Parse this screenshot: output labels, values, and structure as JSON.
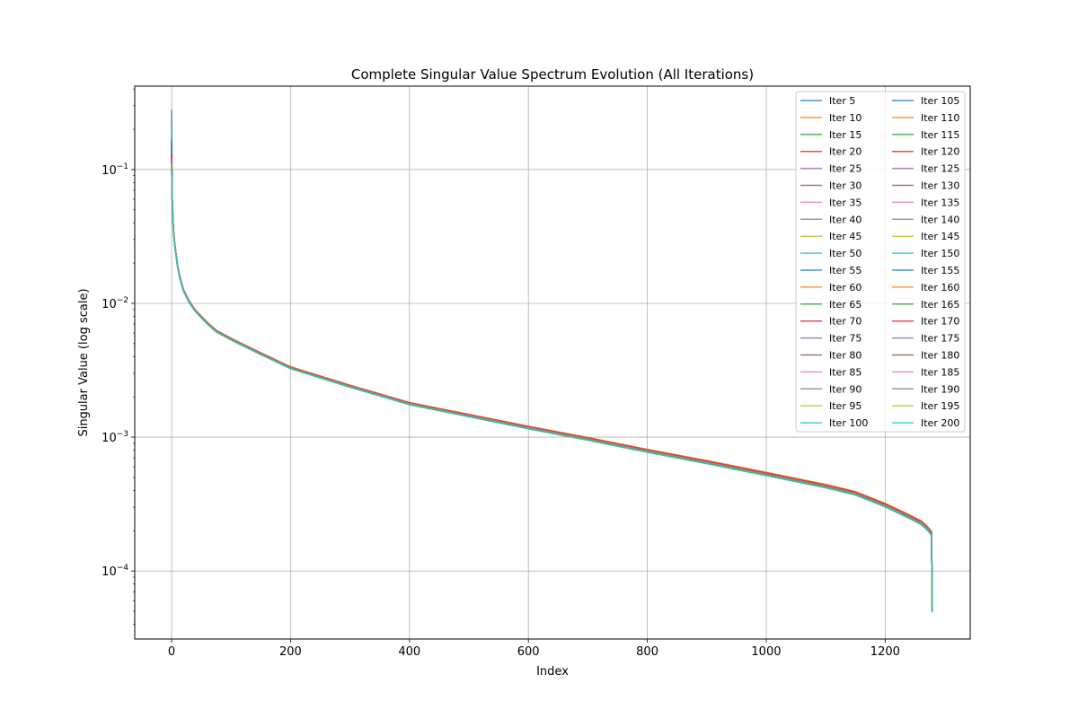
{
  "chart_data": {
    "type": "line",
    "title": "Complete Singular Value Spectrum Evolution (All Iterations)",
    "xlabel": "Index",
    "ylabel": "Singular Value (log scale)",
    "xlim": [
      -62,
      1343
    ],
    "ylim": [
      3.1e-05,
      0.42
    ],
    "yscale": "log",
    "grid": true,
    "legend_position": "top-right",
    "legend_columns": 2,
    "x_ticks": [
      {
        "value": 0,
        "label": "0"
      },
      {
        "value": 200,
        "label": "200"
      },
      {
        "value": 400,
        "label": "400"
      },
      {
        "value": 600,
        "label": "600"
      },
      {
        "value": 800,
        "label": "800"
      },
      {
        "value": 1000,
        "label": "1000"
      },
      {
        "value": 1200,
        "label": "1200"
      }
    ],
    "y_ticks": [
      {
        "value": 0.1,
        "base": "10",
        "exp": "−1"
      },
      {
        "value": 0.01,
        "base": "10",
        "exp": "−2"
      },
      {
        "value": 0.001,
        "base": "10",
        "exp": "−3"
      },
      {
        "value": 0.0001,
        "base": "10",
        "exp": "−4"
      }
    ],
    "x": [
      0,
      1,
      2,
      3,
      5,
      7,
      10,
      14,
      20,
      30,
      40,
      50,
      60,
      75,
      100,
      150,
      200,
      300,
      400,
      500,
      600,
      700,
      800,
      900,
      1000,
      1100,
      1150,
      1200,
      1240,
      1260,
      1270,
      1275,
      1278,
      1279
    ],
    "base_profile": [
      0.12,
      0.06,
      0.045,
      0.036,
      0.028,
      0.024,
      0.019,
      0.0155,
      0.0125,
      0.0102,
      0.0088,
      0.0079,
      0.0071,
      0.0062,
      0.0054,
      0.0042,
      0.0033,
      0.0024,
      0.00178,
      0.00145,
      0.00118,
      0.00097,
      0.00079,
      0.00065,
      0.00053,
      0.00043,
      0.00038,
      0.00031,
      0.000255,
      0.00023,
      0.00021,
      0.000198,
      0.00019,
      6.15e-05
    ],
    "series": [
      {
        "name": "Iter 5",
        "color": "#1f77b4",
        "scale": 0.97,
        "first": 0.28,
        "last": 5.3e-05
      },
      {
        "name": "Iter 10",
        "color": "#ff7f0e",
        "scale": 1.03,
        "first": 0.13,
        "last": 5.5e-05
      },
      {
        "name": "Iter 15",
        "color": "#2ca02c",
        "scale": 0.99,
        "first": 0.125,
        "last": 5.8e-05
      },
      {
        "name": "Iter 20",
        "color": "#d62728",
        "scale": 1.02,
        "first": 0.14,
        "last": 6e-05
      },
      {
        "name": "Iter 25",
        "color": "#9467bd",
        "scale": 1.0,
        "first": 0.12,
        "last": 6.2e-05
      },
      {
        "name": "Iter 30",
        "color": "#8c564b",
        "scale": 1.01,
        "first": 0.13,
        "last": 6.3e-05
      },
      {
        "name": "Iter 35",
        "color": "#e377c2",
        "scale": 1.0,
        "first": 0.12,
        "last": 6.1e-05
      },
      {
        "name": "Iter 40",
        "color": "#7f7f7f",
        "scale": 0.99,
        "first": 0.115,
        "last": 6.2e-05
      },
      {
        "name": "Iter 45",
        "color": "#bcbd22",
        "scale": 0.98,
        "first": 0.11,
        "last": 5.8e-05
      },
      {
        "name": "Iter 50",
        "color": "#17becf",
        "scale": 0.985,
        "first": 0.11,
        "last": 5.7e-05
      },
      {
        "name": "Iter 55",
        "color": "#1f77b4",
        "scale": 1.0,
        "first": 0.17,
        "last": 6e-05
      },
      {
        "name": "Iter 60",
        "color": "#ff7f0e",
        "scale": 1.035,
        "first": 0.13,
        "last": 5.8e-05
      },
      {
        "name": "Iter 65",
        "color": "#2ca02c",
        "scale": 0.975,
        "first": 0.12,
        "last": 5.1e-05
      },
      {
        "name": "Iter 70",
        "color": "#d62728",
        "scale": 1.02,
        "first": 0.13,
        "last": 6.2e-05
      },
      {
        "name": "Iter 75",
        "color": "#9467bd",
        "scale": 1.0,
        "first": 0.12,
        "last": 6.1e-05
      },
      {
        "name": "Iter 80",
        "color": "#8c564b",
        "scale": 1.01,
        "first": 0.12,
        "last": 6.3e-05
      },
      {
        "name": "Iter 85",
        "color": "#e377c2",
        "scale": 1.0,
        "first": 0.12,
        "last": 6.1e-05
      },
      {
        "name": "Iter 90",
        "color": "#7f7f7f",
        "scale": 0.99,
        "first": 0.115,
        "last": 6e-05
      },
      {
        "name": "Iter 95",
        "color": "#bcbd22",
        "scale": 0.975,
        "first": 0.11,
        "last": 5.5e-05
      },
      {
        "name": "Iter 100",
        "color": "#17becf",
        "scale": 0.98,
        "first": 0.11,
        "last": 5.4e-05
      },
      {
        "name": "Iter 105",
        "color": "#1f77b4",
        "scale": 1.0,
        "first": 0.16,
        "last": 5.8e-05
      },
      {
        "name": "Iter 110",
        "color": "#ff7f0e",
        "scale": 1.03,
        "first": 0.13,
        "last": 5.7e-05
      },
      {
        "name": "Iter 115",
        "color": "#2ca02c",
        "scale": 0.975,
        "first": 0.12,
        "last": 5e-05
      },
      {
        "name": "Iter 120",
        "color": "#d62728",
        "scale": 1.02,
        "first": 0.13,
        "last": 6.2e-05
      },
      {
        "name": "Iter 125",
        "color": "#9467bd",
        "scale": 1.0,
        "first": 0.12,
        "last": 6e-05
      },
      {
        "name": "Iter 130",
        "color": "#8c564b",
        "scale": 1.01,
        "first": 0.12,
        "last": 6.2e-05
      },
      {
        "name": "Iter 135",
        "color": "#e377c2",
        "scale": 1.0,
        "first": 0.12,
        "last": 6e-05
      },
      {
        "name": "Iter 140",
        "color": "#7f7f7f",
        "scale": 0.99,
        "first": 0.115,
        "last": 6e-05
      },
      {
        "name": "Iter 145",
        "color": "#bcbd22",
        "scale": 0.975,
        "first": 0.11,
        "last": 5.4e-05
      },
      {
        "name": "Iter 150",
        "color": "#17becf",
        "scale": 0.98,
        "first": 0.11,
        "last": 5.3e-05
      },
      {
        "name": "Iter 155",
        "color": "#1f77b4",
        "scale": 1.0,
        "first": 0.15,
        "last": 5.7e-05
      },
      {
        "name": "Iter 160",
        "color": "#ff7f0e",
        "scale": 1.03,
        "first": 0.13,
        "last": 5.6e-05
      },
      {
        "name": "Iter 165",
        "color": "#2ca02c",
        "scale": 0.975,
        "first": 0.12,
        "last": 4.9e-05
      },
      {
        "name": "Iter 170",
        "color": "#d62728",
        "scale": 1.02,
        "first": 0.13,
        "last": 6.1e-05
      },
      {
        "name": "Iter 175",
        "color": "#9467bd",
        "scale": 1.0,
        "first": 0.12,
        "last": 6e-05
      },
      {
        "name": "Iter 180",
        "color": "#8c564b",
        "scale": 1.01,
        "first": 0.12,
        "last": 6.2e-05
      },
      {
        "name": "Iter 185",
        "color": "#e377c2",
        "scale": 1.0,
        "first": 0.12,
        "last": 6e-05
      },
      {
        "name": "Iter 190",
        "color": "#7f7f7f",
        "scale": 0.99,
        "first": 0.115,
        "last": 5.9e-05
      },
      {
        "name": "Iter 195",
        "color": "#bcbd22",
        "scale": 0.975,
        "first": 0.11,
        "last": 5.3e-05
      },
      {
        "name": "Iter 200",
        "color": "#17becf",
        "scale": 0.98,
        "first": 0.1,
        "last": 5.2e-05
      }
    ]
  }
}
